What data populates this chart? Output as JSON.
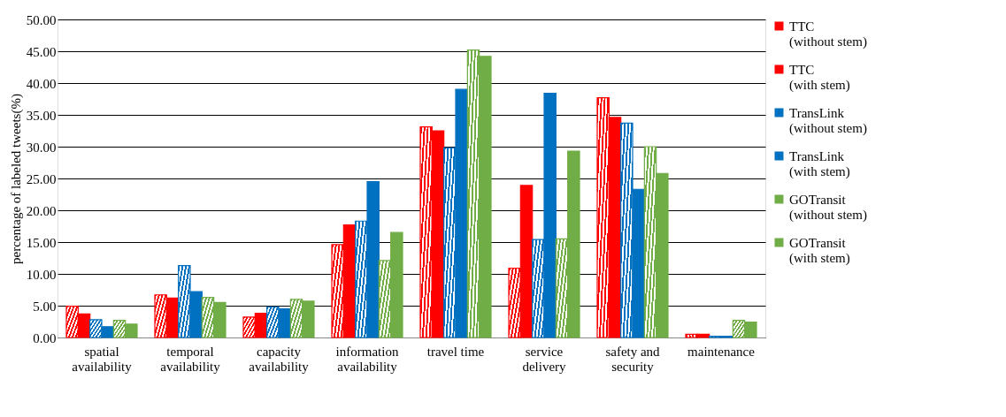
{
  "chart_data": {
    "type": "bar",
    "ylabel": "percentage of labeled tweets(%)",
    "categories": [
      "spatial availability",
      "temporal availability",
      "capacity availability",
      "information availability",
      "travel time",
      "service delivery",
      "safety and security",
      "maintenance"
    ],
    "series": [
      {
        "name": "TTC (without stem)",
        "color": "#ff0000",
        "values": [
          4.9,
          6.7,
          3.2,
          14.6,
          33.1,
          10.9,
          37.7,
          0.5
        ]
      },
      {
        "name": "TTC (with stem)",
        "color": "#ff0000",
        "values": [
          3.7,
          6.2,
          3.8,
          17.7,
          32.5,
          23.9,
          34.6,
          0.5
        ]
      },
      {
        "name": "TransLink (without stem)",
        "color": "#0070c0",
        "values": [
          2.8,
          11.3,
          4.8,
          18.3,
          29.8,
          15.4,
          33.7,
          0.2
        ]
      },
      {
        "name": "TransLink (with stem)",
        "color": "#0070c0",
        "values": [
          1.7,
          7.2,
          4.5,
          24.5,
          39.0,
          38.4,
          23.3,
          0.2
        ]
      },
      {
        "name": "GOTransit (without stem)",
        "color": "#70ad47",
        "values": [
          2.7,
          6.3,
          6.0,
          12.1,
          45.2,
          15.5,
          30.0,
          2.7
        ]
      },
      {
        "name": "GOTransit (with stem)",
        "color": "#70ad47",
        "values": [
          2.1,
          5.5,
          5.7,
          16.5,
          44.2,
          29.3,
          25.8,
          2.4
        ]
      }
    ],
    "ylim": [
      0,
      50
    ],
    "yticks": [
      {
        "value": 0,
        "label": "0.00"
      },
      {
        "value": 5,
        "label": "5.00"
      },
      {
        "value": 10,
        "label": "10.00"
      },
      {
        "value": 15,
        "label": "15.00"
      },
      {
        "value": 20,
        "label": "20.00"
      },
      {
        "value": 25,
        "label": "25.00"
      },
      {
        "value": 30,
        "label": "30.00"
      },
      {
        "value": 35,
        "label": "35.00"
      },
      {
        "value": 40,
        "label": "40.00"
      },
      {
        "value": 45,
        "label": "45.00"
      },
      {
        "value": 50,
        "label": "50.00"
      }
    ],
    "grid": "y",
    "legend": "right"
  }
}
